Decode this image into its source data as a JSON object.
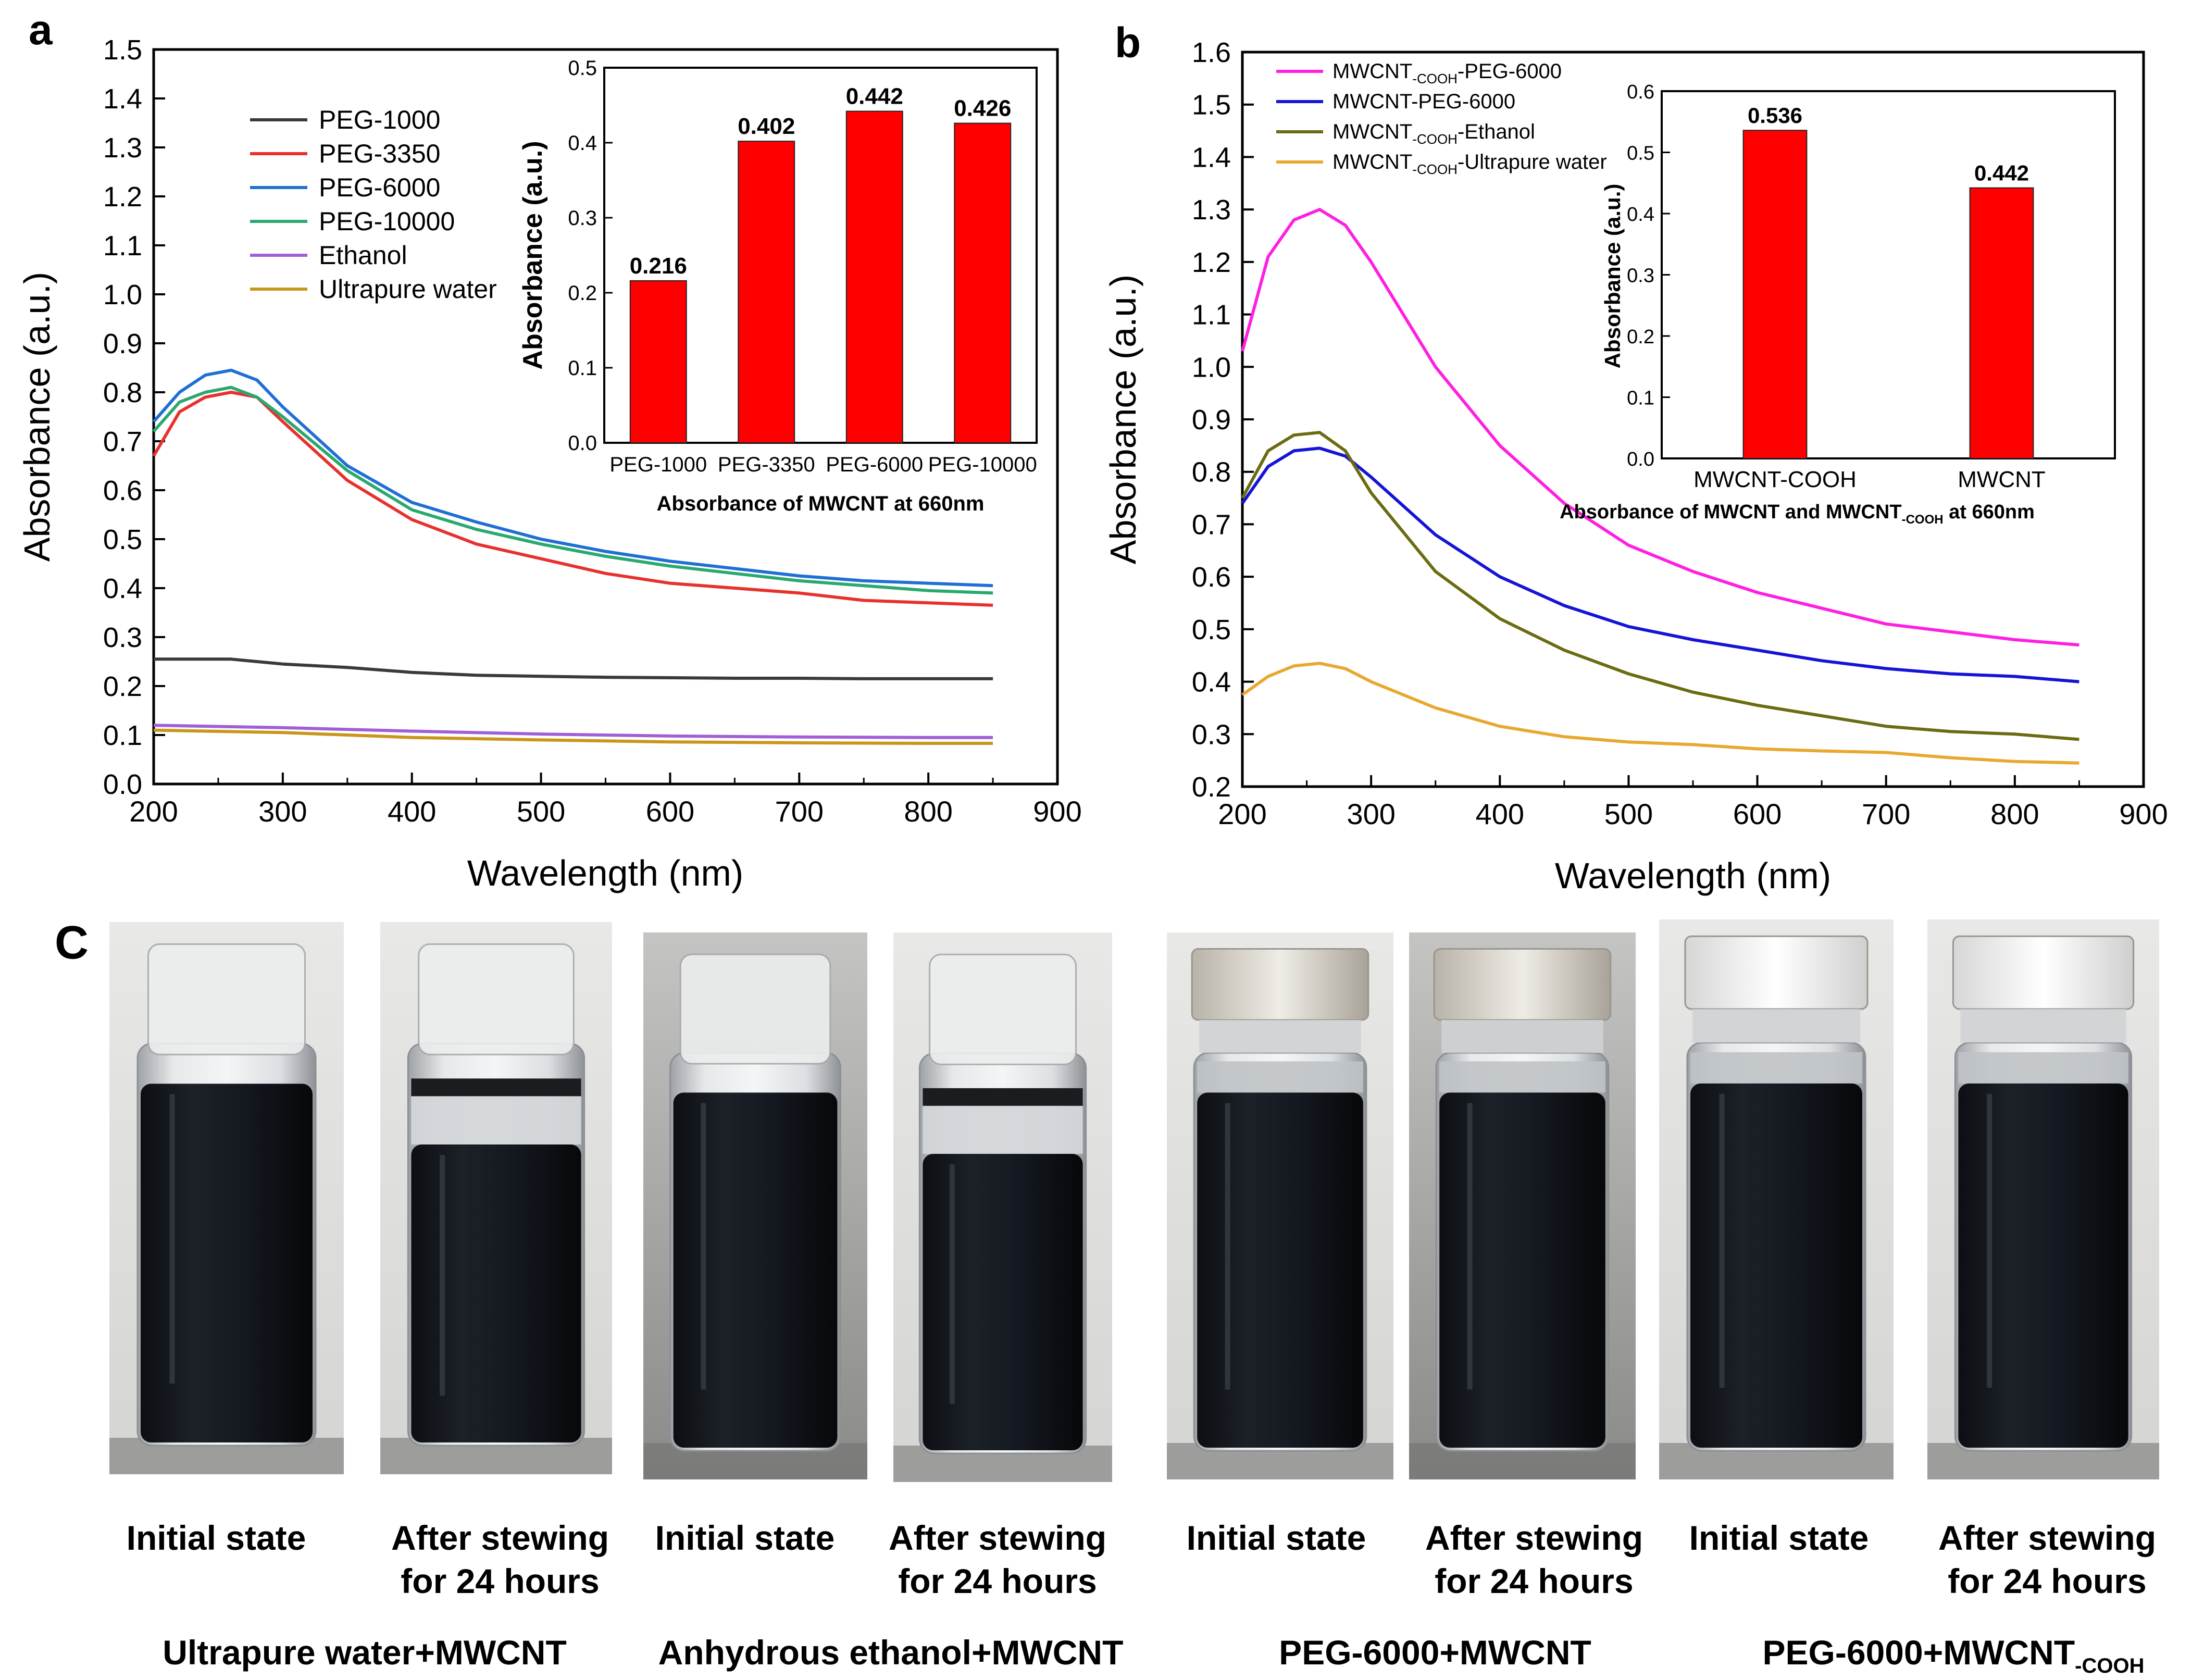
{
  "panel_a": {
    "label": "a",
    "main": {
      "type": "line",
      "xlabel": "Wavelength (nm)",
      "ylabel": "Absorbance (a.u.)",
      "xlim": [
        200,
        900
      ],
      "ylim": [
        0.0,
        1.5
      ],
      "xticks": [
        200,
        300,
        400,
        500,
        600,
        700,
        800,
        900
      ],
      "yticks": [
        0.0,
        0.1,
        0.2,
        0.3,
        0.4,
        0.5,
        0.6,
        0.7,
        0.8,
        0.9,
        1.0,
        1.1,
        1.2,
        1.3,
        1.4,
        1.5
      ],
      "ytick_labels": [
        "0.0",
        "0.1",
        "0.2",
        "0.3",
        "0.4",
        "0.5",
        "0.6",
        "0.7",
        "0.8",
        "0.9",
        "1.0",
        "1.1",
        "1.2",
        "1.3",
        "1.4",
        "1.5"
      ],
      "legend": "upper-left",
      "series": [
        {
          "name": "PEG-1000",
          "color": "#3a3a3a",
          "x": [
            200,
            260,
            300,
            350,
            400,
            450,
            500,
            550,
            600,
            650,
            700,
            750,
            800,
            850
          ],
          "y": [
            0.255,
            0.255,
            0.245,
            0.238,
            0.228,
            0.222,
            0.22,
            0.218,
            0.217,
            0.216,
            0.216,
            0.215,
            0.215,
            0.215
          ]
        },
        {
          "name": "PEG-3350",
          "color": "#e8312f",
          "x": [
            200,
            220,
            240,
            260,
            280,
            300,
            350,
            400,
            450,
            500,
            550,
            600,
            650,
            700,
            750,
            800,
            850
          ],
          "y": [
            0.67,
            0.76,
            0.79,
            0.8,
            0.79,
            0.74,
            0.62,
            0.54,
            0.49,
            0.46,
            0.43,
            0.41,
            0.4,
            0.39,
            0.375,
            0.37,
            0.365
          ]
        },
        {
          "name": "PEG-6000",
          "color": "#1f6fd4",
          "x": [
            200,
            220,
            240,
            260,
            280,
            300,
            350,
            400,
            450,
            500,
            550,
            600,
            650,
            700,
            750,
            800,
            850
          ],
          "y": [
            0.74,
            0.8,
            0.835,
            0.845,
            0.825,
            0.77,
            0.65,
            0.575,
            0.535,
            0.5,
            0.475,
            0.455,
            0.44,
            0.425,
            0.415,
            0.41,
            0.405
          ]
        },
        {
          "name": "PEG-10000",
          "color": "#2aa870",
          "x": [
            200,
            220,
            240,
            260,
            280,
            300,
            350,
            400,
            450,
            500,
            550,
            600,
            650,
            700,
            750,
            800,
            850
          ],
          "y": [
            0.72,
            0.78,
            0.8,
            0.81,
            0.79,
            0.75,
            0.64,
            0.56,
            0.52,
            0.49,
            0.465,
            0.445,
            0.43,
            0.415,
            0.405,
            0.395,
            0.39
          ]
        },
        {
          "name": "Ethanol",
          "color": "#a05fd6",
          "x": [
            200,
            300,
            400,
            500,
            600,
            700,
            800,
            850
          ],
          "y": [
            0.12,
            0.115,
            0.108,
            0.102,
            0.098,
            0.096,
            0.095,
            0.095
          ]
        },
        {
          "name": "Ultrapure water",
          "color": "#c8961a",
          "x": [
            200,
            300,
            400,
            500,
            600,
            700,
            800,
            850
          ],
          "y": [
            0.11,
            0.105,
            0.095,
            0.09,
            0.086,
            0.084,
            0.083,
            0.083
          ]
        }
      ]
    },
    "inset": {
      "type": "bar",
      "ylabel": "Absorbance (a.u.)",
      "xlabel": "Absorbance of MWCNT at 660nm",
      "categories": [
        "PEG-1000",
        "PEG-3350",
        "PEG-6000",
        "PEG-10000"
      ],
      "values": [
        0.216,
        0.402,
        0.442,
        0.426
      ],
      "value_labels": [
        "0.216",
        "0.402",
        "0.442",
        "0.426"
      ],
      "ylim": [
        0.0,
        0.5
      ],
      "yticks": [
        0.0,
        0.1,
        0.2,
        0.3,
        0.4,
        0.5
      ],
      "ytick_labels": [
        "0.0",
        "0.1",
        "0.2",
        "0.3",
        "0.4",
        "0.5"
      ],
      "bar_color": "#ff0000"
    }
  },
  "panel_b": {
    "label": "b",
    "main": {
      "type": "line",
      "xlabel": "Wavelength (nm)",
      "ylabel": "Absorbance (a.u.)",
      "xlim": [
        200,
        900
      ],
      "ylim": [
        0.2,
        1.6
      ],
      "xticks": [
        200,
        300,
        400,
        500,
        600,
        700,
        800,
        900
      ],
      "yticks": [
        0.2,
        0.3,
        0.4,
        0.5,
        0.6,
        0.7,
        0.8,
        0.9,
        1.0,
        1.1,
        1.2,
        1.3,
        1.4,
        1.5,
        1.6
      ],
      "ytick_labels": [
        "0.2",
        "0.3",
        "0.4",
        "0.5",
        "0.6",
        "0.7",
        "0.8",
        "0.9",
        "1.0",
        "1.1",
        "1.2",
        "1.3",
        "1.4",
        "1.5",
        "1.6"
      ],
      "legend": "upper-left",
      "series": [
        {
          "name": "MWCNT",
          "sub": "-COOH",
          "suffix": "-PEG-6000",
          "color": "#ff1fe0",
          "x": [
            200,
            220,
            240,
            260,
            280,
            300,
            350,
            400,
            450,
            500,
            550,
            600,
            650,
            700,
            750,
            800,
            850
          ],
          "y": [
            1.03,
            1.21,
            1.28,
            1.3,
            1.27,
            1.2,
            1.0,
            0.85,
            0.74,
            0.66,
            0.61,
            0.57,
            0.54,
            0.51,
            0.495,
            0.48,
            0.47
          ]
        },
        {
          "name": "MWCNT-PEG-6000",
          "sub": "",
          "suffix": "",
          "color": "#1414d6",
          "x": [
            200,
            220,
            240,
            260,
            280,
            300,
            350,
            400,
            450,
            500,
            550,
            600,
            650,
            700,
            750,
            800,
            850
          ],
          "y": [
            0.74,
            0.81,
            0.84,
            0.845,
            0.83,
            0.79,
            0.68,
            0.6,
            0.545,
            0.505,
            0.48,
            0.46,
            0.44,
            0.425,
            0.415,
            0.41,
            0.4
          ]
        },
        {
          "name": "MWCNT",
          "sub": "-COOH",
          "suffix": "-Ethanol",
          "color": "#6b6b12",
          "x": [
            200,
            220,
            240,
            260,
            280,
            300,
            350,
            400,
            450,
            500,
            550,
            600,
            650,
            700,
            750,
            800,
            850
          ],
          "y": [
            0.75,
            0.84,
            0.87,
            0.875,
            0.84,
            0.76,
            0.61,
            0.52,
            0.46,
            0.415,
            0.38,
            0.355,
            0.335,
            0.315,
            0.305,
            0.3,
            0.29
          ]
        },
        {
          "name": "MWCNT",
          "sub": "-COOH",
          "suffix": "-Ultrapure water",
          "color": "#e8a830",
          "x": [
            200,
            220,
            240,
            260,
            280,
            300,
            350,
            400,
            450,
            500,
            550,
            600,
            650,
            700,
            750,
            800,
            850
          ],
          "y": [
            0.375,
            0.41,
            0.43,
            0.435,
            0.425,
            0.4,
            0.35,
            0.315,
            0.295,
            0.285,
            0.28,
            0.272,
            0.268,
            0.265,
            0.255,
            0.248,
            0.245
          ]
        }
      ]
    },
    "inset": {
      "type": "bar",
      "ylabel": "Absorbance (a.u.)",
      "xlabel_pre": "Absorbance of MWCNT and MWCNT",
      "xlabel_sub": "-COOH",
      "xlabel_post": " at 660nm",
      "categories": [
        "MWCNT-COOH",
        "MWCNT"
      ],
      "values": [
        0.536,
        0.442
      ],
      "value_labels": [
        "0.536",
        "0.442"
      ],
      "ylim": [
        0.0,
        0.6
      ],
      "yticks": [
        0.0,
        0.1,
        0.2,
        0.3,
        0.4,
        0.5,
        0.6
      ],
      "ytick_labels": [
        "0.0",
        "0.1",
        "0.2",
        "0.3",
        "0.4",
        "0.5",
        "0.6"
      ],
      "bar_color": "#ff0000"
    }
  },
  "panel_c": {
    "label": "C",
    "photos": [
      {
        "caption_1": "Initial state",
        "caption_2": "",
        "state": "initial",
        "cap": "plastic"
      },
      {
        "caption_1": "After stewing",
        "caption_2": "for 24 hours",
        "state": "settled",
        "cap": "plastic"
      },
      {
        "caption_1": "Initial state",
        "caption_2": "",
        "state": "initial",
        "cap": "plastic"
      },
      {
        "caption_1": "After stewing",
        "caption_2": "for 24 hours",
        "state": "settled",
        "cap": "plastic"
      },
      {
        "caption_1": "Initial state",
        "caption_2": "",
        "state": "initial",
        "cap": "cap-gray"
      },
      {
        "caption_1": "After stewing",
        "caption_2": "for 24 hours",
        "state": "stable",
        "cap": "cap-gray"
      },
      {
        "caption_1": "Initial state",
        "caption_2": "",
        "state": "initial",
        "cap": "cap-white"
      },
      {
        "caption_1": "After stewing",
        "caption_2": "for 24 hours",
        "state": "stable",
        "cap": "cap-white"
      }
    ],
    "groups": [
      {
        "text": "Ultrapure water+MWCNT",
        "sub": ""
      },
      {
        "text": "Anhydrous ethanol+MWCNT",
        "sub": ""
      },
      {
        "text": "PEG-6000+MWCNT",
        "sub": ""
      },
      {
        "text": "PEG-6000+MWCNT",
        "sub": "-COOH"
      }
    ]
  },
  "chart_data": [
    {
      "type": "line",
      "title": "a",
      "xlabel": "Wavelength (nm)",
      "ylabel": "Absorbance (a.u.)",
      "xlim": [
        200,
        900
      ],
      "ylim": [
        0,
        1.5
      ],
      "series": [
        {
          "name": "PEG-1000",
          "x": [
            200,
            300,
            400,
            500,
            600,
            700,
            850
          ],
          "values": [
            0.255,
            0.245,
            0.228,
            0.22,
            0.217,
            0.216,
            0.215
          ]
        },
        {
          "name": "PEG-3350",
          "x": [
            200,
            260,
            300,
            400,
            500,
            600,
            700,
            850
          ],
          "values": [
            0.67,
            0.8,
            0.74,
            0.54,
            0.46,
            0.41,
            0.39,
            0.365
          ]
        },
        {
          "name": "PEG-6000",
          "x": [
            200,
            260,
            300,
            400,
            500,
            600,
            700,
            850
          ],
          "values": [
            0.74,
            0.845,
            0.77,
            0.575,
            0.5,
            0.455,
            0.425,
            0.405
          ]
        },
        {
          "name": "PEG-10000",
          "x": [
            200,
            260,
            300,
            400,
            500,
            600,
            700,
            850
          ],
          "values": [
            0.72,
            0.81,
            0.75,
            0.56,
            0.49,
            0.445,
            0.415,
            0.39
          ]
        },
        {
          "name": "Ethanol",
          "x": [
            200,
            400,
            600,
            850
          ],
          "values": [
            0.12,
            0.108,
            0.098,
            0.095
          ]
        },
        {
          "name": "Ultrapure water",
          "x": [
            200,
            400,
            600,
            850
          ],
          "values": [
            0.11,
            0.095,
            0.086,
            0.083
          ]
        }
      ]
    },
    {
      "type": "bar",
      "title": "Absorbance of MWCNT at 660nm",
      "ylabel": "Absorbance (a.u.)",
      "ylim": [
        0,
        0.5
      ],
      "categories": [
        "PEG-1000",
        "PEG-3350",
        "PEG-6000",
        "PEG-10000"
      ],
      "values": [
        0.216,
        0.402,
        0.442,
        0.426
      ]
    },
    {
      "type": "line",
      "title": "b",
      "xlabel": "Wavelength (nm)",
      "ylabel": "Absorbance (a.u.)",
      "xlim": [
        200,
        900
      ],
      "ylim": [
        0.2,
        1.6
      ],
      "series": [
        {
          "name": "MWCNT-COOH-PEG-6000",
          "x": [
            200,
            260,
            300,
            400,
            500,
            600,
            700,
            850
          ],
          "values": [
            1.03,
            1.3,
            1.2,
            0.85,
            0.66,
            0.57,
            0.51,
            0.47
          ]
        },
        {
          "name": "MWCNT-PEG-6000",
          "x": [
            200,
            260,
            300,
            400,
            500,
            600,
            700,
            850
          ],
          "values": [
            0.74,
            0.845,
            0.79,
            0.6,
            0.505,
            0.46,
            0.425,
            0.4
          ]
        },
        {
          "name": "MWCNT-COOH-Ethanol",
          "x": [
            200,
            260,
            300,
            400,
            500,
            600,
            700,
            850
          ],
          "values": [
            0.75,
            0.875,
            0.76,
            0.52,
            0.415,
            0.355,
            0.315,
            0.29
          ]
        },
        {
          "name": "MWCNT-COOH-Ultrapure water",
          "x": [
            200,
            260,
            300,
            400,
            500,
            600,
            700,
            850
          ],
          "values": [
            0.375,
            0.435,
            0.4,
            0.315,
            0.285,
            0.272,
            0.265,
            0.245
          ]
        }
      ]
    },
    {
      "type": "bar",
      "title": "Absorbance of MWCNT and MWCNT-COOH at 660nm",
      "ylabel": "Absorbance (a.u.)",
      "ylim": [
        0,
        0.6
      ],
      "categories": [
        "MWCNT-COOH",
        "MWCNT"
      ],
      "values": [
        0.536,
        0.442
      ]
    }
  ]
}
